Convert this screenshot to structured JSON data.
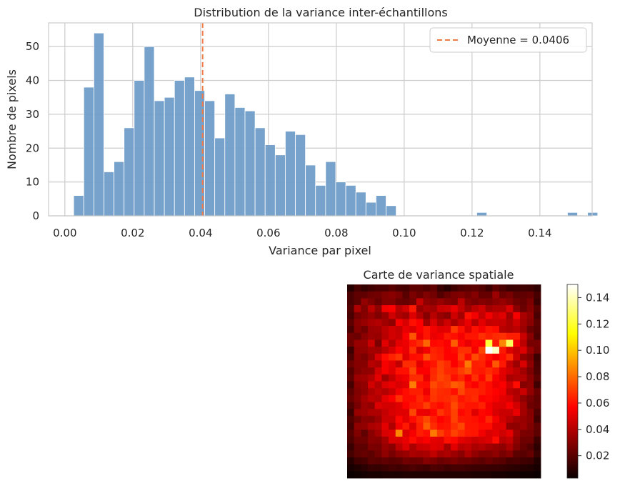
{
  "chart_data": [
    {
      "type": "bar",
      "subtype": "histogram",
      "title": "Distribution de la variance inter-échantillons",
      "xlabel": "Variance par pixel",
      "ylabel": "Nombre de pixels",
      "xlim": [
        -0.0048,
        0.1554
      ],
      "ylim": [
        0,
        57
      ],
      "xticks": [
        "0.00",
        "0.02",
        "0.04",
        "0.06",
        "0.08",
        "0.10",
        "0.12",
        "0.14"
      ],
      "xtick_values": [
        0.0,
        0.02,
        0.04,
        0.06,
        0.08,
        0.1,
        0.12,
        0.14
      ],
      "yticks": [
        "0",
        "10",
        "20",
        "30",
        "40",
        "50"
      ],
      "ytick_values": [
        0,
        10,
        20,
        30,
        40,
        50
      ],
      "bin_start": 0.0026,
      "bin_width": 0.00297,
      "counts": [
        6,
        38,
        54,
        13,
        16,
        26,
        40,
        50,
        34,
        35,
        40,
        41,
        37,
        34,
        23,
        36,
        32,
        31,
        26,
        21,
        18,
        25,
        24,
        15,
        9,
        16,
        10,
        9,
        7,
        4,
        6,
        3,
        0,
        0,
        0,
        0,
        0,
        0,
        0,
        0,
        1,
        0,
        0,
        0,
        0,
        0,
        0,
        0,
        0,
        1,
        0,
        1
      ],
      "bar_color": "#6c9bc8",
      "mean_line": {
        "value": 0.0406,
        "color": "#f07c4a",
        "style": "dashed"
      },
      "legend": {
        "position": "top-right",
        "entries": [
          "Moyenne = 0.0406"
        ]
      },
      "grid": true
    },
    {
      "type": "heatmap",
      "title": "Carte de variance spatiale",
      "colormap": "hot",
      "rows": 28,
      "cols": 28,
      "colorbar": {
        "ticks": [
          "0.02",
          "0.04",
          "0.06",
          "0.08",
          "0.10",
          "0.12",
          "0.14"
        ],
        "tick_values": [
          0.02,
          0.04,
          0.06,
          0.08,
          0.1,
          0.12,
          0.14
        ],
        "range": [
          0.003,
          0.15
        ]
      },
      "values": [
        [
          0.009,
          0.016,
          0.012,
          0.015,
          0.017,
          0.017,
          0.02,
          0.017,
          0.016,
          0.021,
          0.021,
          0.018,
          0.022,
          0.013,
          0.009,
          0.015,
          0.018,
          0.02,
          0.021,
          0.019,
          0.014,
          0.021,
          0.017,
          0.013,
          0.014,
          0.015,
          0.014,
          0.011
        ],
        [
          0.017,
          0.022,
          0.022,
          0.025,
          0.026,
          0.029,
          0.031,
          0.028,
          0.02,
          0.028,
          0.024,
          0.029,
          0.026,
          0.019,
          0.024,
          0.028,
          0.029,
          0.026,
          0.03,
          0.023,
          0.023,
          0.035,
          0.024,
          0.027,
          0.021,
          0.022,
          0.023,
          0.016
        ],
        [
          0.017,
          0.021,
          0.033,
          0.028,
          0.023,
          0.029,
          0.029,
          0.024,
          0.023,
          0.026,
          0.044,
          0.032,
          0.03,
          0.034,
          0.03,
          0.028,
          0.042,
          0.03,
          0.027,
          0.03,
          0.028,
          0.031,
          0.034,
          0.03,
          0.025,
          0.023,
          0.028,
          0.014
        ],
        [
          0.019,
          0.039,
          0.029,
          0.042,
          0.032,
          0.054,
          0.056,
          0.041,
          0.047,
          0.062,
          0.034,
          0.038,
          0.036,
          0.045,
          0.046,
          0.052,
          0.043,
          0.035,
          0.042,
          0.046,
          0.036,
          0.039,
          0.039,
          0.048,
          0.031,
          0.024,
          0.03,
          0.02
        ],
        [
          0.017,
          0.027,
          0.03,
          0.034,
          0.029,
          0.034,
          0.046,
          0.039,
          0.036,
          0.049,
          0.04,
          0.03,
          0.041,
          0.034,
          0.031,
          0.046,
          0.037,
          0.06,
          0.054,
          0.044,
          0.054,
          0.046,
          0.05,
          0.036,
          0.055,
          0.038,
          0.033,
          0.017
        ],
        [
          0.021,
          0.031,
          0.034,
          0.038,
          0.04,
          0.036,
          0.032,
          0.055,
          0.048,
          0.06,
          0.056,
          0.036,
          0.048,
          0.039,
          0.046,
          0.038,
          0.045,
          0.052,
          0.041,
          0.051,
          0.044,
          0.045,
          0.044,
          0.039,
          0.046,
          0.037,
          0.031,
          0.021
        ],
        [
          0.017,
          0.03,
          0.026,
          0.035,
          0.036,
          0.042,
          0.047,
          0.044,
          0.052,
          0.049,
          0.056,
          0.061,
          0.054,
          0.05,
          0.051,
          0.069,
          0.06,
          0.049,
          0.06,
          0.055,
          0.061,
          0.059,
          0.041,
          0.039,
          0.042,
          0.035,
          0.024,
          0.02
        ],
        [
          0.026,
          0.024,
          0.031,
          0.035,
          0.034,
          0.041,
          0.047,
          0.045,
          0.056,
          0.075,
          0.053,
          0.061,
          0.052,
          0.054,
          0.062,
          0.06,
          0.055,
          0.061,
          0.061,
          0.067,
          0.063,
          0.066,
          0.067,
          0.063,
          0.063,
          0.045,
          0.031,
          0.018
        ],
        [
          0.025,
          0.034,
          0.034,
          0.045,
          0.028,
          0.05,
          0.04,
          0.051,
          0.053,
          0.061,
          0.066,
          0.079,
          0.058,
          0.059,
          0.056,
          0.077,
          0.058,
          0.052,
          0.058,
          0.057,
          0.121,
          0.062,
          0.086,
          0.126,
          0.054,
          0.042,
          0.027,
          0.027
        ],
        [
          0.014,
          0.032,
          0.033,
          0.037,
          0.036,
          0.042,
          0.048,
          0.057,
          0.052,
          0.067,
          0.049,
          0.054,
          0.064,
          0.062,
          0.057,
          0.059,
          0.067,
          0.067,
          0.055,
          0.072,
          0.15,
          0.141,
          0.062,
          0.049,
          0.044,
          0.049,
          0.034,
          0.026
        ],
        [
          0.018,
          0.031,
          0.028,
          0.034,
          0.048,
          0.059,
          0.064,
          0.068,
          0.05,
          0.059,
          0.06,
          0.074,
          0.065,
          0.063,
          0.057,
          0.057,
          0.07,
          0.059,
          0.073,
          0.066,
          0.06,
          0.055,
          0.059,
          0.066,
          0.046,
          0.033,
          0.028,
          0.014
        ],
        [
          0.025,
          0.03,
          0.03,
          0.041,
          0.038,
          0.055,
          0.051,
          0.043,
          0.066,
          0.066,
          0.051,
          0.058,
          0.061,
          0.07,
          0.066,
          0.056,
          0.063,
          0.083,
          0.063,
          0.064,
          0.055,
          0.076,
          0.062,
          0.044,
          0.035,
          0.048,
          0.032,
          0.017
        ],
        [
          0.02,
          0.029,
          0.032,
          0.033,
          0.047,
          0.055,
          0.05,
          0.06,
          0.06,
          0.072,
          0.056,
          0.056,
          0.065,
          0.071,
          0.065,
          0.064,
          0.07,
          0.075,
          0.063,
          0.062,
          0.066,
          0.062,
          0.051,
          0.047,
          0.042,
          0.036,
          0.028,
          0.018
        ],
        [
          0.022,
          0.035,
          0.036,
          0.04,
          0.051,
          0.036,
          0.044,
          0.052,
          0.054,
          0.066,
          0.066,
          0.052,
          0.066,
          0.072,
          0.069,
          0.06,
          0.065,
          0.056,
          0.067,
          0.058,
          0.07,
          0.056,
          0.05,
          0.038,
          0.04,
          0.04,
          0.031,
          0.021
        ],
        [
          0.016,
          0.031,
          0.033,
          0.047,
          0.04,
          0.049,
          0.052,
          0.048,
          0.051,
          0.084,
          0.06,
          0.059,
          0.073,
          0.068,
          0.07,
          0.077,
          0.074,
          0.06,
          0.056,
          0.063,
          0.059,
          0.053,
          0.056,
          0.046,
          0.059,
          0.03,
          0.032,
          0.015
        ],
        [
          0.021,
          0.029,
          0.032,
          0.039,
          0.043,
          0.04,
          0.045,
          0.054,
          0.059,
          0.063,
          0.063,
          0.053,
          0.069,
          0.066,
          0.065,
          0.06,
          0.072,
          0.065,
          0.065,
          0.063,
          0.059,
          0.057,
          0.054,
          0.042,
          0.039,
          0.045,
          0.033,
          0.024
        ],
        [
          0.024,
          0.03,
          0.037,
          0.042,
          0.04,
          0.051,
          0.056,
          0.067,
          0.059,
          0.059,
          0.065,
          0.06,
          0.068,
          0.065,
          0.066,
          0.069,
          0.061,
          0.064,
          0.066,
          0.057,
          0.058,
          0.055,
          0.051,
          0.048,
          0.04,
          0.032,
          0.027,
          0.022
        ],
        [
          0.019,
          0.027,
          0.035,
          0.033,
          0.049,
          0.047,
          0.047,
          0.05,
          0.057,
          0.062,
          0.063,
          0.07,
          0.062,
          0.059,
          0.063,
          0.073,
          0.064,
          0.061,
          0.061,
          0.064,
          0.055,
          0.05,
          0.049,
          0.055,
          0.047,
          0.037,
          0.025,
          0.023
        ],
        [
          0.014,
          0.034,
          0.035,
          0.039,
          0.039,
          0.044,
          0.048,
          0.05,
          0.05,
          0.072,
          0.053,
          0.052,
          0.058,
          0.068,
          0.063,
          0.071,
          0.058,
          0.061,
          0.05,
          0.058,
          0.056,
          0.048,
          0.045,
          0.045,
          0.052,
          0.037,
          0.03,
          0.018
        ],
        [
          0.019,
          0.025,
          0.031,
          0.03,
          0.035,
          0.045,
          0.045,
          0.058,
          0.051,
          0.059,
          0.065,
          0.072,
          0.063,
          0.057,
          0.06,
          0.071,
          0.062,
          0.061,
          0.06,
          0.057,
          0.065,
          0.055,
          0.046,
          0.041,
          0.036,
          0.034,
          0.031,
          0.015
        ],
        [
          0.016,
          0.032,
          0.033,
          0.038,
          0.04,
          0.051,
          0.039,
          0.054,
          0.062,
          0.049,
          0.063,
          0.077,
          0.066,
          0.06,
          0.061,
          0.067,
          0.072,
          0.061,
          0.061,
          0.059,
          0.059,
          0.05,
          0.05,
          0.033,
          0.032,
          0.035,
          0.029,
          0.022
        ],
        [
          0.02,
          0.029,
          0.022,
          0.031,
          0.037,
          0.048,
          0.05,
          0.086,
          0.049,
          0.055,
          0.063,
          0.06,
          0.083,
          0.07,
          0.063,
          0.071,
          0.066,
          0.062,
          0.061,
          0.054,
          0.048,
          0.051,
          0.046,
          0.051,
          0.035,
          0.028,
          0.027,
          0.021
        ],
        [
          0.018,
          0.025,
          0.025,
          0.031,
          0.03,
          0.037,
          0.049,
          0.048,
          0.052,
          0.059,
          0.053,
          0.056,
          0.051,
          0.05,
          0.06,
          0.058,
          0.051,
          0.048,
          0.045,
          0.047,
          0.049,
          0.059,
          0.041,
          0.044,
          0.032,
          0.025,
          0.025,
          0.014
        ],
        [
          0.013,
          0.022,
          0.021,
          0.028,
          0.027,
          0.034,
          0.031,
          0.042,
          0.049,
          0.038,
          0.045,
          0.046,
          0.05,
          0.048,
          0.037,
          0.05,
          0.041,
          0.043,
          0.038,
          0.04,
          0.036,
          0.034,
          0.032,
          0.038,
          0.029,
          0.023,
          0.019,
          0.011
        ],
        [
          0.016,
          0.021,
          0.023,
          0.021,
          0.026,
          0.032,
          0.027,
          0.032,
          0.034,
          0.038,
          0.037,
          0.038,
          0.043,
          0.037,
          0.039,
          0.035,
          0.031,
          0.039,
          0.033,
          0.029,
          0.029,
          0.032,
          0.027,
          0.03,
          0.021,
          0.02,
          0.023,
          0.013
        ],
        [
          0.009,
          0.015,
          0.016,
          0.021,
          0.02,
          0.022,
          0.02,
          0.021,
          0.026,
          0.024,
          0.025,
          0.03,
          0.028,
          0.024,
          0.026,
          0.028,
          0.025,
          0.025,
          0.023,
          0.021,
          0.024,
          0.021,
          0.02,
          0.016,
          0.017,
          0.015,
          0.014,
          0.008
        ],
        [
          0.006,
          0.008,
          0.01,
          0.013,
          0.012,
          0.014,
          0.016,
          0.015,
          0.016,
          0.018,
          0.016,
          0.015,
          0.018,
          0.017,
          0.015,
          0.016,
          0.016,
          0.015,
          0.014,
          0.014,
          0.013,
          0.013,
          0.012,
          0.011,
          0.01,
          0.009,
          0.008,
          0.006
        ],
        [
          0.003,
          0.004,
          0.005,
          0.006,
          0.006,
          0.007,
          0.007,
          0.007,
          0.008,
          0.008,
          0.008,
          0.008,
          0.008,
          0.008,
          0.008,
          0.008,
          0.008,
          0.008,
          0.007,
          0.007,
          0.007,
          0.006,
          0.006,
          0.005,
          0.005,
          0.004,
          0.004,
          0.003
        ]
      ]
    }
  ]
}
